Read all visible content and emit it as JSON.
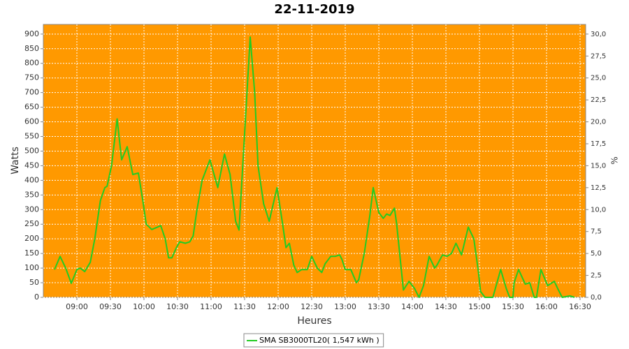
{
  "chart_data": {
    "type": "line",
    "title": "22-11-2019",
    "x_label": "Heures",
    "y_label": "Watts",
    "y2_label": "%",
    "x": [
      "08:40",
      "08:45",
      "08:50",
      "08:55",
      "09:00",
      "09:03",
      "09:07",
      "09:12",
      "09:16",
      "09:21",
      "09:25",
      "09:27",
      "09:31",
      "09:36",
      "09:40",
      "09:45",
      "09:50",
      "09:55",
      "09:59",
      "10:02",
      "10:07",
      "10:12",
      "10:15",
      "10:19",
      "10:22",
      "10:25",
      "10:29",
      "10:32",
      "10:37",
      "10:41",
      "10:44",
      "10:47",
      "10:52",
      "10:59",
      "11:06",
      "11:12",
      "11:17",
      "11:22",
      "11:25",
      "11:30",
      "11:35",
      "11:39",
      "11:42",
      "11:47",
      "11:52",
      "11:59",
      "12:04",
      "12:07",
      "12:10",
      "12:14",
      "12:17",
      "12:21",
      "12:26",
      "12:30",
      "12:35",
      "12:39",
      "12:42",
      "12:47",
      "12:51",
      "12:55",
      "12:57",
      "13:00",
      "13:05",
      "13:10",
      "13:12",
      "13:17",
      "13:22",
      "13:25",
      "13:30",
      "13:34",
      "13:37",
      "13:40",
      "13:44",
      "13:46",
      "13:50",
      "13:52",
      "13:57",
      "14:02",
      "14:06",
      "14:10",
      "14:15",
      "14:20",
      "14:22",
      "14:27",
      "14:31",
      "14:35",
      "14:39",
      "14:44",
      "14:50",
      "14:55",
      "14:59",
      "15:01",
      "15:05",
      "15:12",
      "15:19",
      "15:24",
      "15:27",
      "15:30",
      "15:31",
      "15:35",
      "15:41",
      "15:45",
      "15:49",
      "15:51",
      "15:55",
      "16:01",
      "16:07",
      "16:10",
      "16:14",
      "16:21",
      "16:25"
    ],
    "series": [
      {
        "name": "SMA SB3000TL20( 1,547 kWh )",
        "color": "#22cc22",
        "values": [
          95,
          140,
          100,
          48,
          95,
          100,
          88,
          120,
          200,
          330,
          375,
          380,
          450,
          610,
          470,
          515,
          420,
          425,
          330,
          250,
          232,
          240,
          245,
          200,
          135,
          135,
          170,
          190,
          185,
          190,
          210,
          290,
          400,
          470,
          375,
          490,
          420,
          260,
          230,
          560,
          890,
          700,
          450,
          320,
          260,
          375,
          250,
          170,
          185,
          110,
          85,
          95,
          95,
          140,
          100,
          85,
          115,
          140,
          140,
          145,
          130,
          95,
          95,
          50,
          60,
          150,
          280,
          375,
          290,
          270,
          285,
          280,
          305,
          250,
          100,
          25,
          55,
          30,
          0,
          40,
          140,
          100,
          110,
          145,
          140,
          150,
          185,
          145,
          240,
          200,
          90,
          20,
          0,
          0,
          95,
          30,
          0,
          0,
          50,
          95,
          45,
          50,
          0,
          0,
          95,
          40,
          55,
          30,
          0,
          5,
          0
        ]
      }
    ],
    "xlim": [
      "08:30",
      "16:35"
    ],
    "xticks": [
      "09:00",
      "09:30",
      "10:00",
      "10:30",
      "11:00",
      "11:30",
      "12:00",
      "12:30",
      "13:00",
      "13:30",
      "14:00",
      "14:30",
      "15:00",
      "15:30",
      "16:00",
      "16:30"
    ],
    "ylim": [
      0,
      933
    ],
    "yticks": [
      0,
      50,
      100,
      150,
      200,
      250,
      300,
      350,
      400,
      450,
      500,
      550,
      600,
      650,
      700,
      750,
      800,
      850,
      900
    ],
    "y2lim": [
      0,
      31.1
    ],
    "y2ticks": [
      {
        "value": 0,
        "label": "0,0"
      },
      {
        "value": 2.5,
        "label": "2,5"
      },
      {
        "value": 5,
        "label": "5,0"
      },
      {
        "value": 7.5,
        "label": "7,5"
      },
      {
        "value": 10,
        "label": "10,0"
      },
      {
        "value": 12.5,
        "label": "12,5"
      },
      {
        "value": 15,
        "label": "15,0"
      },
      {
        "value": 17.5,
        "label": "17,5"
      },
      {
        "value": 20,
        "label": "20,0"
      },
      {
        "value": 22.5,
        "label": "22,5"
      },
      {
        "value": 25,
        "label": "25,0"
      },
      {
        "value": 27.5,
        "label": "27,5"
      },
      {
        "value": 30,
        "label": "30,0"
      }
    ],
    "grid": true,
    "background": "#ff9900",
    "legend": "bottom"
  }
}
